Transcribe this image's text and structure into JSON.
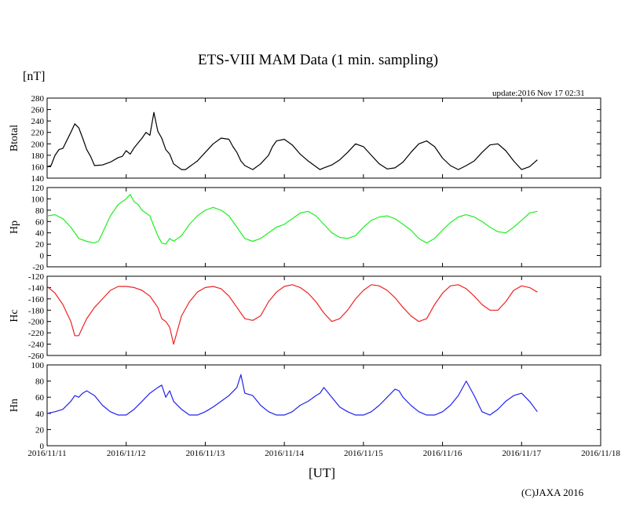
{
  "header": {
    "title": "ETS-VIII MAM Data (1 min. sampling)",
    "unit": "[nT]",
    "update": "update:2016 Nov 17 02:31"
  },
  "footer": {
    "x_unit": "[UT]",
    "copyright": "(C)JAXA 2016"
  },
  "chart_data": {
    "type": "line",
    "grid": false,
    "x_ticks": [
      "2016/11/11",
      "2016/11/12",
      "2016/11/13",
      "2016/11/14",
      "2016/11/15",
      "2016/11/16",
      "2016/11/17",
      "2016/11/18"
    ],
    "x_range_days": [
      0,
      7
    ],
    "panels": [
      {
        "ylabel": "Btotal",
        "ylim": [
          140,
          280
        ],
        "yticks": [
          140,
          160,
          180,
          200,
          220,
          240,
          260,
          280
        ],
        "color": "#000000",
        "x": [
          0.0,
          0.05,
          0.1,
          0.15,
          0.2,
          0.3,
          0.35,
          0.4,
          0.45,
          0.5,
          0.55,
          0.6,
          0.7,
          0.8,
          0.9,
          0.95,
          1.0,
          1.05,
          1.1,
          1.2,
          1.25,
          1.3,
          1.35,
          1.4,
          1.45,
          1.5,
          1.55,
          1.6,
          1.7,
          1.75,
          1.8,
          1.85,
          1.9,
          2.0,
          2.1,
          2.2,
          2.3,
          2.35,
          2.4,
          2.45,
          2.5,
          2.6,
          2.7,
          2.8,
          2.85,
          2.9,
          3.0,
          3.1,
          3.2,
          3.3,
          3.4,
          3.45,
          3.5,
          3.6,
          3.7,
          3.8,
          3.9,
          4.0,
          4.1,
          4.2,
          4.3,
          4.4,
          4.5,
          4.6,
          4.7,
          4.8,
          4.9,
          5.0,
          5.1,
          5.2,
          5.3,
          5.4,
          5.5,
          5.6,
          5.7,
          5.8,
          5.9,
          6.0,
          6.1,
          6.2
        ],
        "y": [
          160,
          162,
          180,
          190,
          192,
          220,
          235,
          228,
          210,
          190,
          178,
          162,
          163,
          168,
          176,
          178,
          188,
          182,
          193,
          210,
          220,
          215,
          255,
          222,
          210,
          190,
          182,
          165,
          155,
          155,
          160,
          165,
          170,
          185,
          200,
          210,
          208,
          195,
          185,
          170,
          162,
          155,
          165,
          180,
          195,
          205,
          208,
          198,
          182,
          170,
          160,
          155,
          158,
          163,
          172,
          185,
          200,
          195,
          180,
          165,
          156,
          158,
          168,
          185,
          200,
          205,
          195,
          175,
          162,
          155,
          162,
          170,
          185,
          198,
          200,
          188,
          170,
          155,
          160,
          172
        ]
      },
      {
        "ylabel": "Hp",
        "ylim": [
          -20,
          120
        ],
        "yticks": [
          -20,
          0,
          20,
          40,
          60,
          80,
          100,
          120
        ],
        "color": "#22ee22",
        "x": [
          0.0,
          0.1,
          0.2,
          0.3,
          0.4,
          0.5,
          0.6,
          0.65,
          0.7,
          0.8,
          0.9,
          1.0,
          1.05,
          1.1,
          1.15,
          1.2,
          1.3,
          1.35,
          1.4,
          1.45,
          1.5,
          1.55,
          1.6,
          1.7,
          1.8,
          1.9,
          2.0,
          2.1,
          2.2,
          2.3,
          2.4,
          2.5,
          2.6,
          2.7,
          2.8,
          2.9,
          3.0,
          3.1,
          3.2,
          3.3,
          3.4,
          3.5,
          3.6,
          3.7,
          3.8,
          3.9,
          4.0,
          4.1,
          4.2,
          4.3,
          4.4,
          4.5,
          4.6,
          4.7,
          4.8,
          4.9,
          5.0,
          5.1,
          5.2,
          5.3,
          5.4,
          5.5,
          5.6,
          5.7,
          5.8,
          5.9,
          6.0,
          6.1,
          6.2
        ],
        "y": [
          70,
          72,
          65,
          50,
          30,
          25,
          22,
          25,
          40,
          70,
          90,
          100,
          108,
          95,
          90,
          80,
          70,
          52,
          35,
          22,
          20,
          30,
          25,
          35,
          55,
          70,
          80,
          85,
          80,
          70,
          50,
          30,
          25,
          30,
          40,
          50,
          55,
          65,
          75,
          78,
          70,
          55,
          40,
          32,
          30,
          35,
          50,
          62,
          68,
          70,
          65,
          55,
          45,
          30,
          22,
          30,
          45,
          58,
          68,
          72,
          68,
          60,
          50,
          42,
          40,
          50,
          62,
          75,
          78
        ]
      },
      {
        "ylabel": "Hc",
        "ylim": [
          -260,
          -120
        ],
        "yticks": [
          -260,
          -240,
          -220,
          -200,
          -180,
          -160,
          -140,
          -120
        ],
        "color": "#ee2222",
        "x": [
          0.0,
          0.1,
          0.2,
          0.3,
          0.35,
          0.4,
          0.45,
          0.5,
          0.6,
          0.7,
          0.8,
          0.9,
          1.0,
          1.1,
          1.2,
          1.3,
          1.4,
          1.45,
          1.5,
          1.55,
          1.6,
          1.7,
          1.8,
          1.9,
          2.0,
          2.1,
          2.2,
          2.3,
          2.4,
          2.5,
          2.6,
          2.7,
          2.8,
          2.9,
          3.0,
          3.1,
          3.2,
          3.3,
          3.4,
          3.5,
          3.6,
          3.7,
          3.8,
          3.9,
          4.0,
          4.1,
          4.2,
          4.3,
          4.4,
          4.5,
          4.6,
          4.7,
          4.8,
          4.9,
          5.0,
          5.1,
          5.2,
          5.3,
          5.4,
          5.5,
          5.6,
          5.7,
          5.8,
          5.9,
          6.0,
          6.1,
          6.2
        ],
        "y": [
          -138,
          -150,
          -170,
          -200,
          -225,
          -225,
          -210,
          -195,
          -175,
          -160,
          -145,
          -138,
          -138,
          -140,
          -145,
          -155,
          -175,
          -195,
          -200,
          -210,
          -240,
          -190,
          -165,
          -148,
          -140,
          -138,
          -142,
          -155,
          -175,
          -195,
          -198,
          -190,
          -165,
          -148,
          -138,
          -135,
          -140,
          -150,
          -165,
          -185,
          -200,
          -195,
          -180,
          -160,
          -145,
          -135,
          -137,
          -145,
          -158,
          -175,
          -190,
          -200,
          -195,
          -170,
          -150,
          -137,
          -135,
          -142,
          -155,
          -170,
          -180,
          -180,
          -165,
          -145,
          -137,
          -140,
          -148
        ]
      },
      {
        "ylabel": "Hn",
        "ylim": [
          0,
          100
        ],
        "yticks": [
          0,
          20,
          40,
          60,
          80,
          100
        ],
        "color": "#2222ee",
        "x": [
          0.0,
          0.1,
          0.2,
          0.3,
          0.35,
          0.4,
          0.45,
          0.5,
          0.6,
          0.7,
          0.8,
          0.9,
          1.0,
          1.1,
          1.2,
          1.3,
          1.4,
          1.45,
          1.5,
          1.55,
          1.6,
          1.7,
          1.8,
          1.9,
          2.0,
          2.1,
          2.2,
          2.3,
          2.4,
          2.45,
          2.5,
          2.6,
          2.7,
          2.8,
          2.9,
          3.0,
          3.1,
          3.2,
          3.3,
          3.4,
          3.45,
          3.5,
          3.6,
          3.7,
          3.8,
          3.9,
          4.0,
          4.1,
          4.2,
          4.3,
          4.4,
          4.45,
          4.5,
          4.6,
          4.7,
          4.8,
          4.9,
          5.0,
          5.1,
          5.2,
          5.3,
          5.4,
          5.5,
          5.6,
          5.7,
          5.8,
          5.9,
          6.0,
          6.1,
          6.2
        ],
        "y": [
          40,
          42,
          45,
          55,
          62,
          60,
          65,
          68,
          62,
          50,
          42,
          38,
          38,
          45,
          55,
          65,
          72,
          75,
          60,
          68,
          55,
          45,
          38,
          38,
          42,
          48,
          55,
          62,
          72,
          88,
          65,
          62,
          50,
          42,
          38,
          38,
          42,
          50,
          55,
          62,
          65,
          72,
          60,
          48,
          42,
          38,
          38,
          42,
          50,
          60,
          70,
          68,
          60,
          50,
          42,
          38,
          38,
          42,
          50,
          62,
          80,
          62,
          42,
          38,
          45,
          55,
          62,
          65,
          55,
          42
        ]
      }
    ]
  }
}
